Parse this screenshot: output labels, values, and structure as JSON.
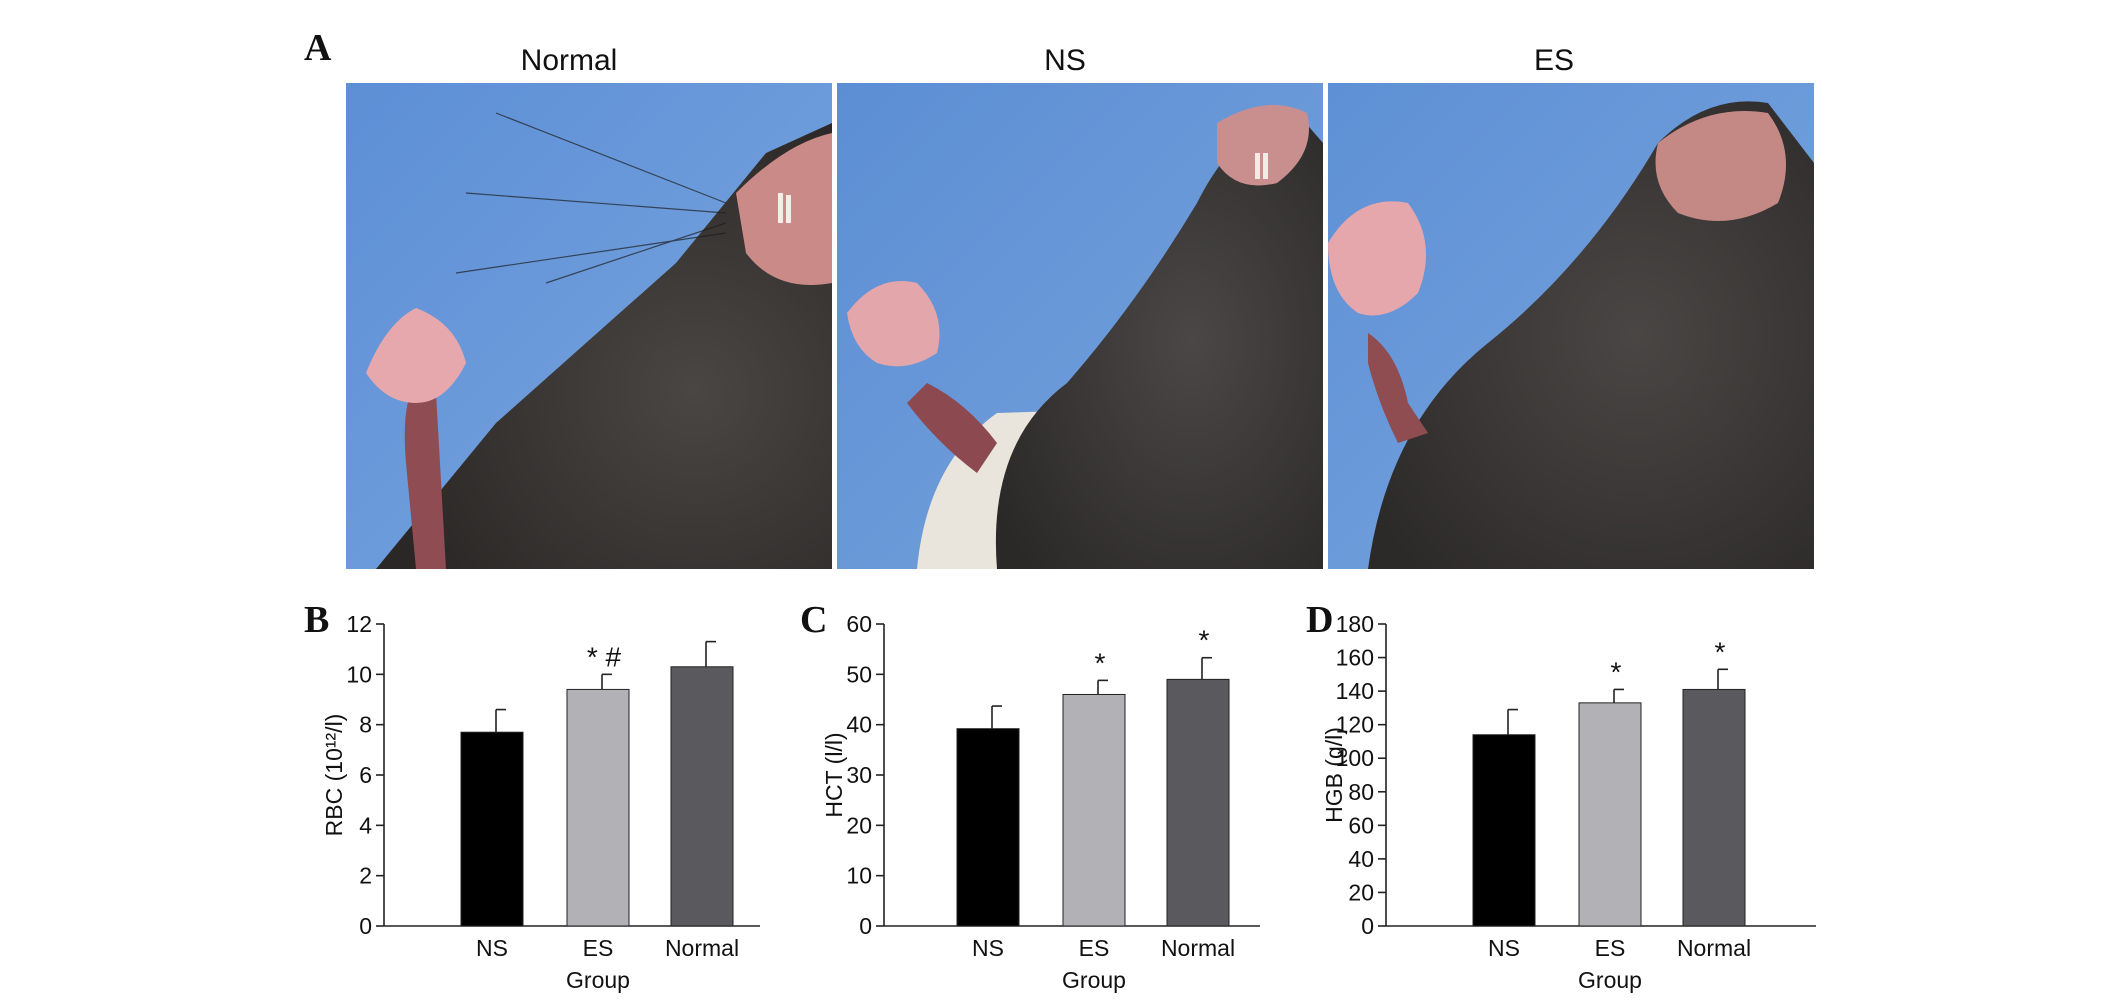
{
  "panel_a": {
    "letter": "A",
    "photos": [
      {
        "label": "Normal"
      },
      {
        "label": "NS"
      },
      {
        "label": "ES"
      }
    ]
  },
  "chart_data": [
    {
      "panel": "B",
      "type": "bar",
      "categories": [
        "NS",
        "ES",
        "Normal"
      ],
      "values": [
        7.7,
        9.4,
        10.3
      ],
      "error": [
        0.9,
        0.6,
        1.0
      ],
      "annotations": [
        "",
        "* #",
        ""
      ],
      "xlabel": "Group",
      "ylabel": "RBC (10¹²/l)",
      "ylim": [
        0,
        12
      ],
      "yticks": [
        0,
        2,
        4,
        6,
        8,
        10,
        12
      ],
      "colors": [
        "#000000",
        "#b2b2b6",
        "#59595e"
      ]
    },
    {
      "panel": "C",
      "type": "bar",
      "categories": [
        "NS",
        "ES",
        "Normal"
      ],
      "values": [
        39.2,
        46.0,
        49.0
      ],
      "error": [
        4.5,
        2.8,
        4.3
      ],
      "annotations": [
        "",
        "*",
        "*"
      ],
      "xlabel": "Group",
      "ylabel": "HCT (l/l)",
      "ylim": [
        0,
        60
      ],
      "yticks": [
        0,
        10,
        20,
        30,
        40,
        50,
        60
      ],
      "colors": [
        "#000000",
        "#b2b2b6",
        "#59595e"
      ]
    },
    {
      "panel": "D",
      "type": "bar",
      "categories": [
        "NS",
        "ES",
        "Normal"
      ],
      "values": [
        114,
        133,
        141
      ],
      "error": [
        15,
        8,
        12
      ],
      "annotations": [
        "",
        "*",
        "*"
      ],
      "xlabel": "Group",
      "ylabel": "HGB (g/l)",
      "ylim": [
        0,
        180
      ],
      "yticks": [
        0,
        20,
        40,
        60,
        80,
        100,
        120,
        140,
        160,
        180
      ],
      "colors": [
        "#000000",
        "#b2b2b6",
        "#59595e"
      ]
    }
  ]
}
